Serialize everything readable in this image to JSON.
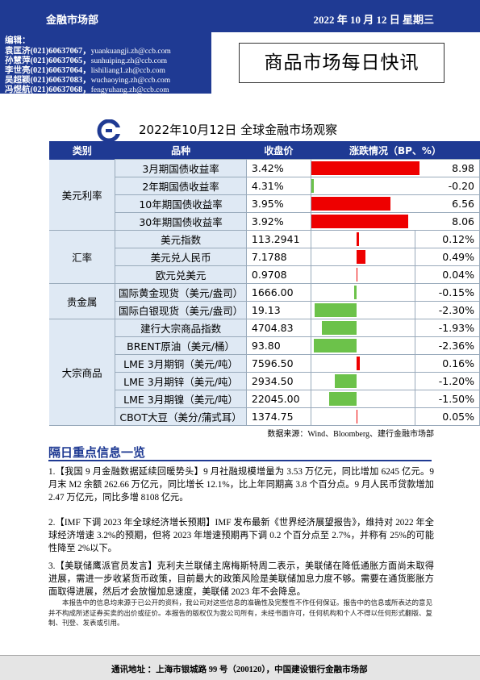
{
  "header": {
    "department": "金融市场部",
    "date": "2022 年 10 月 12 日 星期三"
  },
  "editors": {
    "label": "编辑：",
    "list": [
      {
        "name": "袁匡济",
        "phone": "(021)60637067，",
        "email": "yuankuangji.zh@ccb.com"
      },
      {
        "name": "孙慧萍",
        "phone": "(021)60637065，",
        "email": "sunhuiping.zh@ccb.com"
      },
      {
        "name": "李世亮",
        "phone": "(021)60637064，",
        "email": "lishiliang1.zh@ccb.com"
      },
      {
        "name": "吴超颖",
        "phone": "(021)60637083，",
        "email": "wuchaoying.zh@ccb.com"
      },
      {
        "name": "冯煜航",
        "phone": "(021)60637068，",
        "email": "fengyuhang.zh@ccb.com"
      }
    ]
  },
  "title": "商品市场每日快讯",
  "colors": {
    "brand": "#1f3a93",
    "up": "#e00000",
    "down": "#6cc24a"
  },
  "chart_data": {
    "type": "table",
    "title": "2022年10月12日 全球金融市场观察",
    "headers": [
      "类别",
      "品种",
      "收盘价",
      "涨跌情况（BP、%）"
    ],
    "groups": [
      {
        "category": "美元利率",
        "rows": [
          {
            "name": "3月期国债收益率",
            "close": "3.42%",
            "change": "8.98",
            "value": 8.98,
            "unit": "bp"
          },
          {
            "name": "2年期国债收益率",
            "close": "4.31%",
            "change": "-0.20",
            "value": -0.2,
            "unit": "bp"
          },
          {
            "name": "10年期国债收益率",
            "close": "3.95%",
            "change": "6.56",
            "value": 6.56,
            "unit": "bp"
          },
          {
            "name": "30年期国债收益率",
            "close": "3.92%",
            "change": "8.06",
            "value": 8.06,
            "unit": "bp"
          }
        ]
      },
      {
        "category": "汇率",
        "rows": [
          {
            "name": "美元指数",
            "close": "113.2941",
            "change": "0.12%",
            "value": 0.12,
            "unit": "pct"
          },
          {
            "name": "美元兑人民币",
            "close": "7.1788",
            "change": "0.49%",
            "value": 0.49,
            "unit": "pct"
          },
          {
            "name": "欧元兑美元",
            "close": "0.9708",
            "change": "0.04%",
            "value": 0.04,
            "unit": "pct"
          }
        ]
      },
      {
        "category": "贵金属",
        "rows": [
          {
            "name": "国际黄金现货（美元/盎司）",
            "close": "1666.00",
            "change": "-0.15%",
            "value": -0.15,
            "unit": "pct"
          },
          {
            "name": "国际白银现货（美元/盎司）",
            "close": "19.13",
            "change": "-2.30%",
            "value": -2.3,
            "unit": "pct"
          }
        ]
      },
      {
        "category": "大宗商品",
        "rows": [
          {
            "name": "建行大宗商品指数",
            "close": "4704.83",
            "change": "-1.93%",
            "value": -1.93,
            "unit": "pct"
          },
          {
            "name": "BRENT原油（美元/桶）",
            "close": "93.80",
            "change": "-2.36%",
            "value": -2.36,
            "unit": "pct"
          },
          {
            "name": "LME 3月期铜（美元/吨）",
            "close": "7596.50",
            "change": "0.16%",
            "value": 0.16,
            "unit": "pct"
          },
          {
            "name": "LME 3月期锌（美元/吨）",
            "close": "2934.50",
            "change": "-1.20%",
            "value": -1.2,
            "unit": "pct"
          },
          {
            "name": "LME 3月期镍（美元/吨）",
            "close": "22045.00",
            "change": "-1.50%",
            "value": -1.5,
            "unit": "pct"
          },
          {
            "name": "CBOT大豆（美分/蒲式耳）",
            "close": "1374.75",
            "change": "0.05%",
            "value": 0.05,
            "unit": "pct"
          }
        ]
      }
    ]
  },
  "source": "数据来源：Wind、Bloomberg、建行金融市场部",
  "section_title": "隔日重点信息一览",
  "news": [
    "1.【我国 9 月金融数据延续回暖势头】9 月社融规模增量为 3.53 万亿元，同比增加 6245 亿元。9 月末 M2 余额 262.66 万亿元，同比增长 12.1%，比上年同期高 3.8 个百分点。9 月人民币贷款增加 2.47 万亿元，同比多增 8108 亿元。",
    "2.【IMF 下调 2023 年全球经济增长预期】IMF 发布最新《世界经济展望报告》，维持对 2022 年全球经济增速 3.2%的预期，但将 2023 年增速预期再下调 0.2 个百分点至 2.7%，并称有 25%的可能性降至 2%以下。",
    "3.【美联储鹰派官员发言】克利夫兰联储主席梅斯特周二表示，美联储在降低通胀方面尚未取得进展，需进一步收紧货币政策，目前最大的政策风险是美联储加息力度不够。需要在通货膨胀方面取得进展，然后才会放慢加息速度，美联储 2023 年不会降息。"
  ],
  "disclaimer": "本报告中的信息均来源于已公开的资料，我公司对这些信息的准确性及完整性不作任何保证。报告中的信息或所表达的意见并不构成所述证券买卖的出价或征价。本报告的版权仅为我公司所有，未经书面许可，任何机构和个人不得以任何形式翻版、复制、刊登、发表或引用。",
  "footer": "通讯地址 ：上海市银城路 99 号（200120），中国建设银行金融市场部"
}
